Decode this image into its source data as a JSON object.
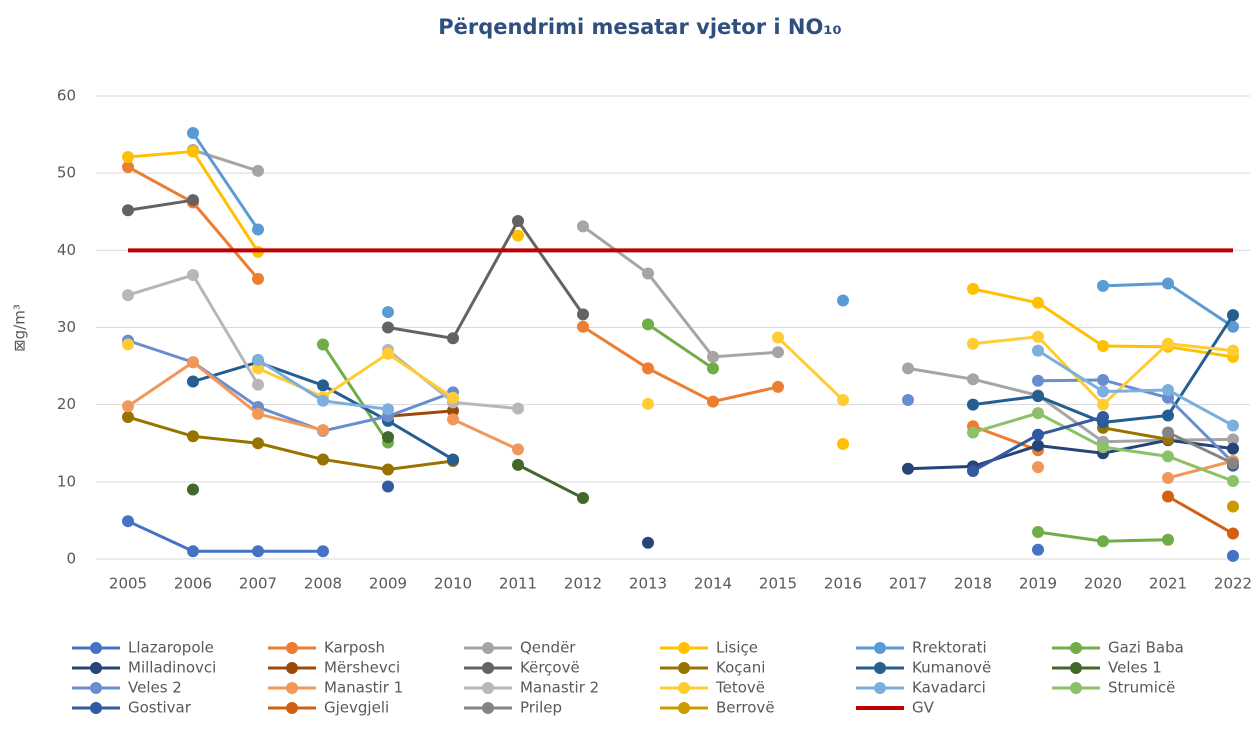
{
  "chart_data": {
    "type": "line",
    "title": "Përqendrimi mesatar vjetor i NO₁₀",
    "y_label": "⊠g/m³",
    "categories": [
      "2005",
      "2006",
      "2007",
      "2008",
      "2009",
      "2010",
      "2011",
      "2012",
      "2013",
      "2014",
      "2015",
      "2016",
      "2017",
      "2018",
      "2019",
      "2020",
      "2021",
      "2022"
    ],
    "ylim": [
      0,
      60
    ],
    "yticks": [
      0,
      10,
      20,
      30,
      40,
      50,
      60
    ],
    "grid": true,
    "legend": "bottom",
    "series": [
      {
        "name": "Llazaropole",
        "color": "#4472c4",
        "values": [
          4.9,
          1.0,
          1.0,
          1.0,
          null,
          null,
          null,
          null,
          null,
          null,
          null,
          null,
          null,
          null,
          1.2,
          null,
          null,
          0.4
        ]
      },
      {
        "name": "Karposh",
        "color": "#ed7d31",
        "values": [
          50.8,
          46.2,
          36.3,
          null,
          null,
          null,
          null,
          30.1,
          24.7,
          20.4,
          22.3,
          null,
          null,
          17.2,
          14.1,
          null,
          null,
          null
        ]
      },
      {
        "name": "Qendër",
        "color": "#a5a5a5",
        "values": [
          null,
          53.0,
          50.3,
          null,
          null,
          null,
          null,
          43.1,
          37.0,
          26.2,
          26.8,
          null,
          24.7,
          23.3,
          21.2,
          15.2,
          15.4,
          15.5
        ]
      },
      {
        "name": "Lisiçe",
        "color": "#ffc000",
        "values": [
          52.1,
          52.8,
          39.8,
          null,
          null,
          null,
          41.9,
          null,
          null,
          null,
          null,
          14.9,
          null,
          35.0,
          33.2,
          27.6,
          27.5,
          26.2
        ]
      },
      {
        "name": "Rrektorati",
        "color": "#5b9bd5",
        "values": [
          null,
          55.2,
          42.7,
          null,
          32.0,
          null,
          null,
          null,
          null,
          null,
          null,
          33.5,
          null,
          null,
          null,
          35.4,
          35.7,
          30.1
        ]
      },
      {
        "name": "Gazi Baba",
        "color": "#70ad47",
        "values": [
          null,
          null,
          null,
          27.8,
          15.1,
          null,
          null,
          null,
          30.4,
          24.7,
          null,
          null,
          null,
          null,
          3.5,
          2.3,
          2.5,
          null
        ]
      },
      {
        "name": "Milladinovci",
        "color": "#264478",
        "values": [
          null,
          null,
          null,
          null,
          null,
          null,
          null,
          null,
          2.1,
          null,
          null,
          null,
          11.7,
          12.0,
          14.7,
          13.7,
          15.4,
          14.3
        ]
      },
      {
        "name": "Mërshevci",
        "color": "#9e480e",
        "values": [
          null,
          null,
          null,
          null,
          18.5,
          19.2,
          null,
          null,
          null,
          null,
          null,
          null,
          null,
          null,
          null,
          null,
          null,
          null
        ]
      },
      {
        "name": "Kërçovë",
        "color": "#636363",
        "values": [
          45.2,
          46.5,
          null,
          null,
          30.0,
          28.6,
          43.8,
          31.7,
          null,
          null,
          null,
          null,
          null,
          null,
          null,
          null,
          null,
          null
        ]
      },
      {
        "name": "Koçani",
        "color": "#997300",
        "values": [
          18.4,
          15.9,
          15.0,
          12.9,
          11.6,
          12.7,
          null,
          null,
          null,
          null,
          null,
          null,
          null,
          null,
          null,
          17.0,
          15.5,
          null
        ]
      },
      {
        "name": "Kumanovë",
        "color": "#255e91",
        "values": [
          null,
          23.0,
          25.5,
          22.5,
          17.9,
          12.9,
          null,
          null,
          null,
          null,
          null,
          null,
          null,
          20.0,
          21.1,
          17.7,
          18.6,
          31.6
        ]
      },
      {
        "name": "Veles 1",
        "color": "#43682b",
        "values": [
          null,
          9.0,
          null,
          null,
          15.8,
          null,
          12.2,
          7.9,
          null,
          null,
          null,
          null,
          null,
          null,
          null,
          null,
          null,
          null
        ]
      },
      {
        "name": "Veles 2",
        "color": "#698ed0",
        "values": [
          28.3,
          25.5,
          19.7,
          16.6,
          18.5,
          21.6,
          null,
          null,
          null,
          null,
          null,
          null,
          20.6,
          null,
          23.1,
          23.2,
          20.9,
          12.5
        ]
      },
      {
        "name": "Manastir 1",
        "color": "#f1975a",
        "values": [
          19.8,
          25.5,
          18.8,
          16.7,
          null,
          18.1,
          14.2,
          null,
          null,
          null,
          null,
          null,
          null,
          null,
          11.9,
          null,
          10.5,
          12.7
        ]
      },
      {
        "name": "Manastir 2",
        "color": "#b7b7b7",
        "values": [
          34.2,
          36.8,
          22.6,
          null,
          27.1,
          20.3,
          19.5,
          null,
          null,
          null,
          null,
          null,
          null,
          null,
          null,
          null,
          null,
          null
        ]
      },
      {
        "name": "Tetovë",
        "color": "#ffcd33",
        "values": [
          27.8,
          null,
          24.7,
          21.0,
          26.6,
          20.9,
          null,
          null,
          20.1,
          null,
          28.7,
          20.6,
          null,
          27.9,
          28.8,
          20.0,
          27.9,
          27.0
        ]
      },
      {
        "name": "Kavadarci",
        "color": "#7cafdd",
        "values": [
          null,
          null,
          25.8,
          20.5,
          19.4,
          null,
          null,
          null,
          null,
          null,
          null,
          null,
          null,
          null,
          27.0,
          21.7,
          21.9,
          17.3
        ]
      },
      {
        "name": "Strumicë",
        "color": "#8cc168",
        "values": [
          null,
          null,
          null,
          null,
          null,
          null,
          null,
          null,
          null,
          null,
          null,
          null,
          null,
          16.4,
          18.9,
          14.5,
          13.3,
          10.1
        ]
      },
      {
        "name": "Gostivar",
        "color": "#335aa1",
        "values": [
          null,
          null,
          null,
          null,
          9.4,
          null,
          null,
          null,
          null,
          null,
          null,
          null,
          null,
          11.4,
          16.1,
          18.4,
          null,
          12.1
        ]
      },
      {
        "name": "Gjevgjeli",
        "color": "#d26012",
        "values": [
          null,
          null,
          null,
          null,
          null,
          null,
          null,
          null,
          null,
          null,
          null,
          null,
          null,
          null,
          null,
          null,
          8.1,
          3.3
        ]
      },
      {
        "name": "Prilep",
        "color": "#848484",
        "values": [
          null,
          null,
          null,
          null,
          null,
          null,
          null,
          null,
          null,
          null,
          null,
          null,
          null,
          null,
          null,
          null,
          16.4,
          12.4
        ]
      },
      {
        "name": "Berrovë",
        "color": "#cc9a00",
        "values": [
          null,
          null,
          null,
          null,
          null,
          null,
          null,
          null,
          null,
          null,
          null,
          null,
          null,
          null,
          null,
          null,
          null,
          6.8
        ]
      },
      {
        "name": "GV",
        "color": "#c00000",
        "markers": false,
        "values": [
          40,
          40,
          40,
          40,
          40,
          40,
          40,
          40,
          40,
          40,
          40,
          40,
          40,
          40,
          40,
          40,
          40,
          40
        ]
      }
    ]
  }
}
